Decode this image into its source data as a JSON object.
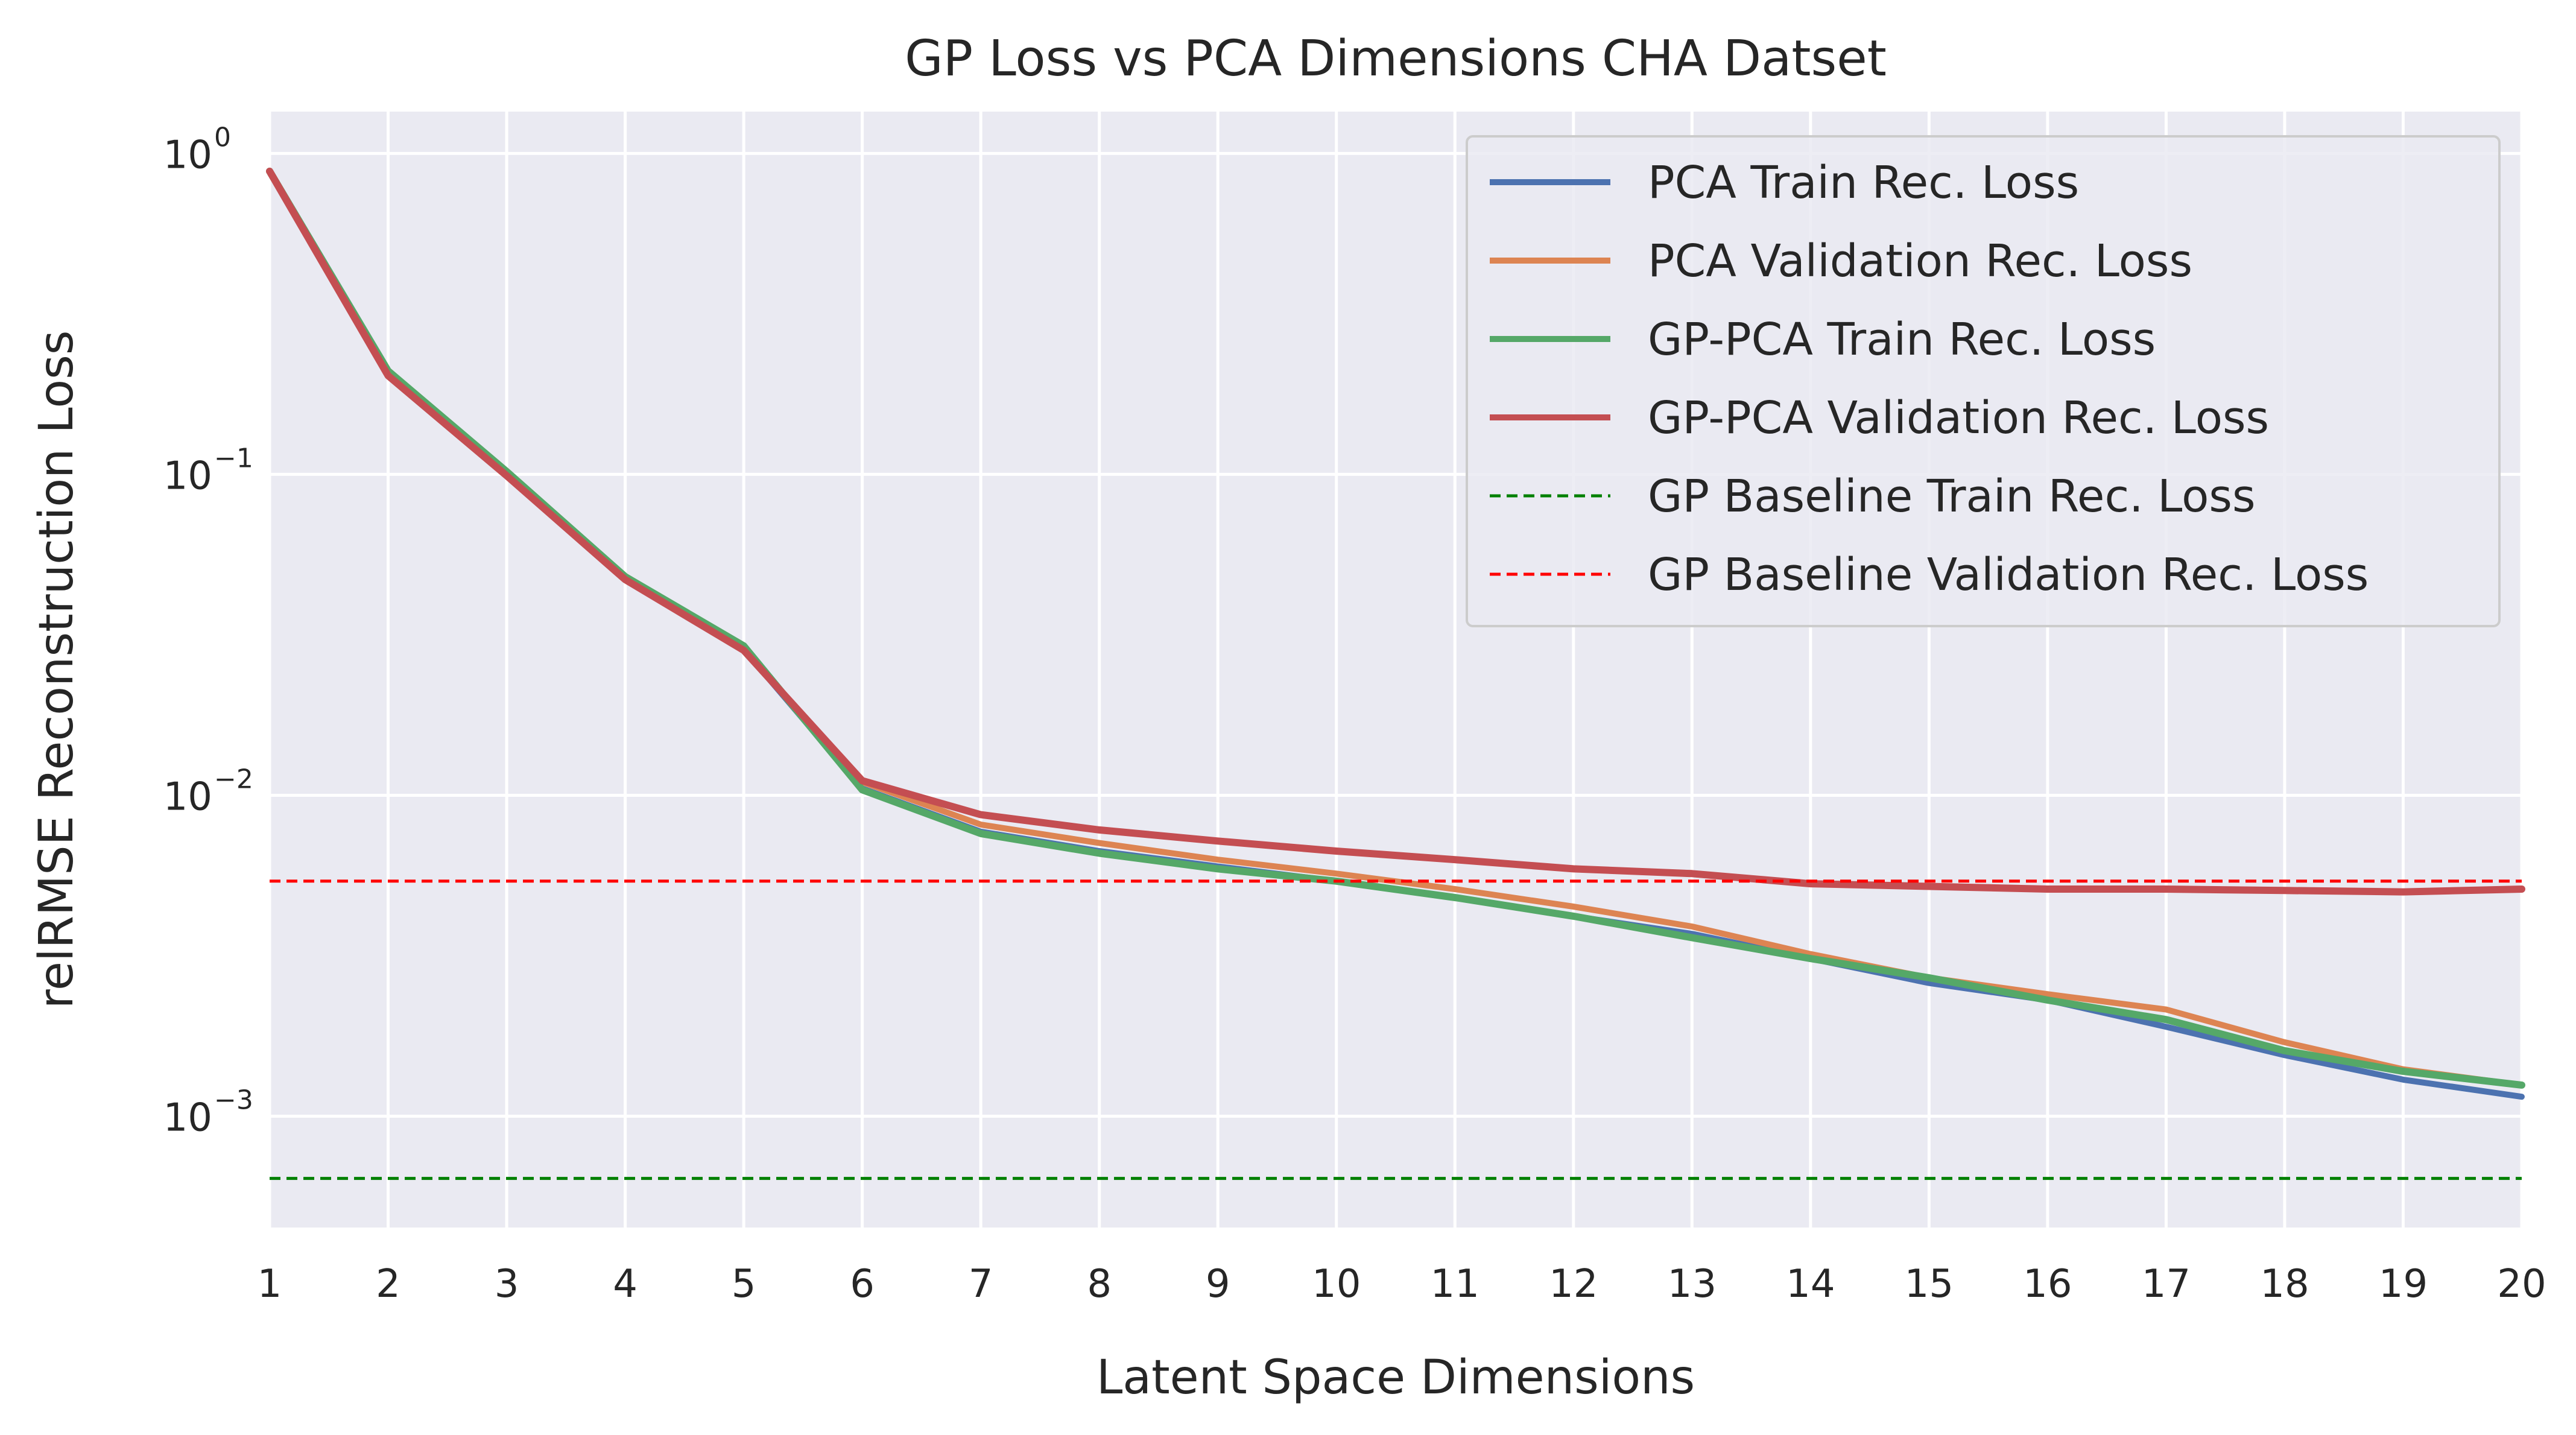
{
  "chart_data": {
    "type": "line",
    "title": "GP Loss vs PCA Dimensions CHA Datset",
    "xlabel": "Latent Space Dimensions",
    "ylabel": "relRMSE Reconstruction Loss",
    "x": [
      1,
      2,
      3,
      4,
      5,
      6,
      7,
      8,
      9,
      10,
      11,
      12,
      13,
      14,
      15,
      16,
      17,
      18,
      19,
      20
    ],
    "xlim": [
      1,
      20
    ],
    "ylim": [
      0.00045,
      1.35
    ],
    "yscale": "log",
    "grid": true,
    "legend_position": "upper-right",
    "x_ticks": [
      "1",
      "2",
      "3",
      "4",
      "5",
      "6",
      "7",
      "8",
      "9",
      "10",
      "11",
      "12",
      "13",
      "14",
      "15",
      "16",
      "17",
      "18",
      "19",
      "20"
    ],
    "y_ticks": [
      {
        "base": "10",
        "exp": "0",
        "value": 1
      },
      {
        "base": "10",
        "exp": "−1",
        "value": 0.1
      },
      {
        "base": "10",
        "exp": "−2",
        "value": 0.01
      },
      {
        "base": "10",
        "exp": "−3",
        "value": 0.001
      }
    ],
    "series": [
      {
        "name": "PCA Train Rec. Loss",
        "color": "#4c72b0",
        "style": "solid",
        "values": [
          0.88,
          0.205,
          0.1,
          0.0475,
          0.0285,
          0.0105,
          0.0077,
          0.0067,
          0.006,
          0.0054,
          0.0048,
          0.0042,
          0.0037,
          0.0031,
          0.0026,
          0.0023,
          0.0019,
          0.00155,
          0.0013,
          0.00115
        ]
      },
      {
        "name": "PCA Validation Rec. Loss",
        "color": "#dd8452",
        "style": "solid",
        "values": [
          0.88,
          0.205,
          0.1,
          0.0475,
          0.0285,
          0.011,
          0.0081,
          0.0071,
          0.0063,
          0.0057,
          0.0051,
          0.0045,
          0.0039,
          0.0032,
          0.0027,
          0.0024,
          0.00215,
          0.0017,
          0.0014,
          0.00125
        ]
      },
      {
        "name": "GP-PCA Train Rec. Loss",
        "color": "#55a868",
        "style": "solid",
        "values": [
          0.88,
          0.21,
          0.102,
          0.048,
          0.0292,
          0.0104,
          0.0076,
          0.0066,
          0.0059,
          0.0054,
          0.0048,
          0.0042,
          0.0036,
          0.0031,
          0.0027,
          0.0023,
          0.002,
          0.0016,
          0.00138,
          0.00125
        ]
      },
      {
        "name": "GP-PCA Validation Rec. Loss",
        "color": "#c44e52",
        "style": "solid",
        "values": [
          0.88,
          0.203,
          0.099,
          0.047,
          0.0283,
          0.0111,
          0.0087,
          0.0078,
          0.0072,
          0.0067,
          0.0063,
          0.0059,
          0.0057,
          0.0053,
          0.0052,
          0.0051,
          0.0051,
          0.00505,
          0.005,
          0.0051
        ]
      },
      {
        "name": "GP Baseline Train Rec. Loss",
        "color": "#008000",
        "style": "dashed",
        "values": [
          0.00064,
          0.00064,
          0.00064,
          0.00064,
          0.00064,
          0.00064,
          0.00064,
          0.00064,
          0.00064,
          0.00064,
          0.00064,
          0.00064,
          0.00064,
          0.00064,
          0.00064,
          0.00064,
          0.00064,
          0.00064,
          0.00064,
          0.00064
        ]
      },
      {
        "name": "GP Baseline Validation Rec. Loss",
        "color": "#ff0000",
        "style": "dashed",
        "values": [
          0.0054,
          0.0054,
          0.0054,
          0.0054,
          0.0054,
          0.0054,
          0.0054,
          0.0054,
          0.0054,
          0.0054,
          0.0054,
          0.0054,
          0.0054,
          0.0054,
          0.0054,
          0.0054,
          0.0054,
          0.0054,
          0.0054,
          0.0054
        ]
      }
    ]
  }
}
